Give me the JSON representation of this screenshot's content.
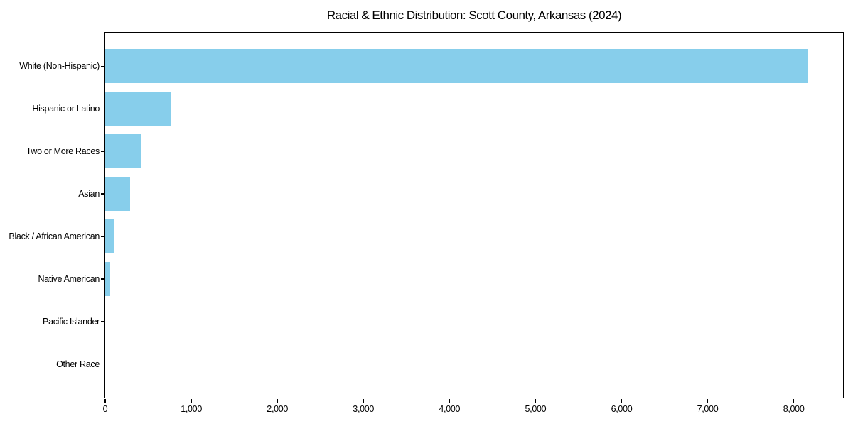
{
  "chart_data": {
    "type": "bar",
    "orientation": "horizontal",
    "title": "Racial & Ethnic Distribution: Scott County, Arkansas (2024)",
    "categories": [
      "White (Non-Hispanic)",
      "Hispanic or Latino",
      "Two or More Races",
      "Asian",
      "Black / African American",
      "Native American",
      "Pacific Islander",
      "Other Race"
    ],
    "values": [
      8165,
      775,
      420,
      290,
      110,
      60,
      5,
      2
    ],
    "bar_color": "#87CEEB",
    "text_color": "#000000",
    "background": "#ffffff",
    "xlabel": "",
    "ylabel": "",
    "grid": false,
    "legend": null,
    "xlim": [
      0,
      8573
    ],
    "ylim": [
      -0.79,
      7.79
    ],
    "bar_thickness_fraction": 0.8,
    "x_ticks": {
      "values": [
        0,
        1000,
        2000,
        3000,
        4000,
        5000,
        6000,
        7000,
        8000
      ],
      "labels": [
        "0",
        "1,000",
        "2,000",
        "3,000",
        "4,000",
        "5,000",
        "6,000",
        "7,000",
        "8,000"
      ]
    }
  }
}
